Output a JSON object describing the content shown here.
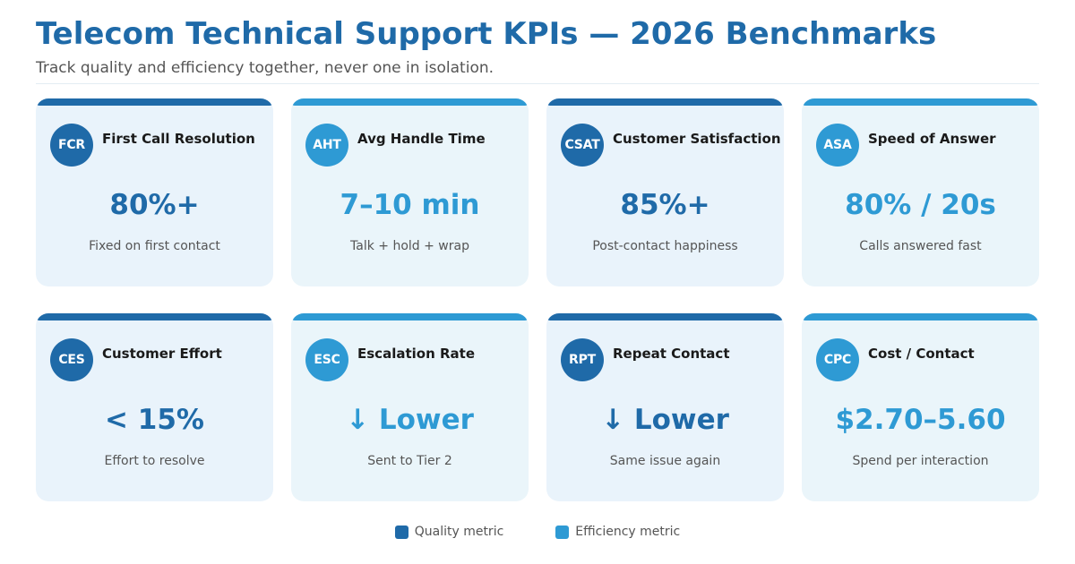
{
  "header": {
    "title": "Telecom Technical Support KPIs — 2026 Benchmarks",
    "subtitle": "Track quality and efficiency together, never one in isolation."
  },
  "colors": {
    "quality": "#1f6aa8",
    "efficiency": "#2e9ad4"
  },
  "cards": [
    {
      "abbr": "FCR",
      "title": "First Call Resolution",
      "value": "80%+",
      "desc": "Fixed on first contact",
      "kind": "quality"
    },
    {
      "abbr": "AHT",
      "title": "Avg Handle Time",
      "value": "7–10 min",
      "desc": "Talk + hold + wrap",
      "kind": "efficiency"
    },
    {
      "abbr": "CSAT",
      "title": "Customer Satisfaction",
      "value": "85%+",
      "desc": "Post-contact happiness",
      "kind": "quality"
    },
    {
      "abbr": "ASA",
      "title": "Speed of Answer",
      "value": "80% / 20s",
      "desc": "Calls answered fast",
      "kind": "efficiency"
    },
    {
      "abbr": "CES",
      "title": "Customer Effort",
      "value": "< 15%",
      "desc": "Effort to resolve",
      "kind": "quality"
    },
    {
      "abbr": "ESC",
      "title": "Escalation Rate",
      "value": "↓ Lower",
      "desc": "Sent to Tier 2",
      "kind": "efficiency"
    },
    {
      "abbr": "RPT",
      "title": "Repeat Contact",
      "value": "↓ Lower",
      "desc": "Same issue again",
      "kind": "quality"
    },
    {
      "abbr": "CPC",
      "title": "Cost / Contact",
      "value": "$2.70–5.60",
      "desc": "Spend per interaction",
      "kind": "efficiency"
    }
  ],
  "legend": [
    {
      "label": "Quality metric",
      "kind": "quality"
    },
    {
      "label": "Efficiency metric",
      "kind": "efficiency"
    }
  ]
}
